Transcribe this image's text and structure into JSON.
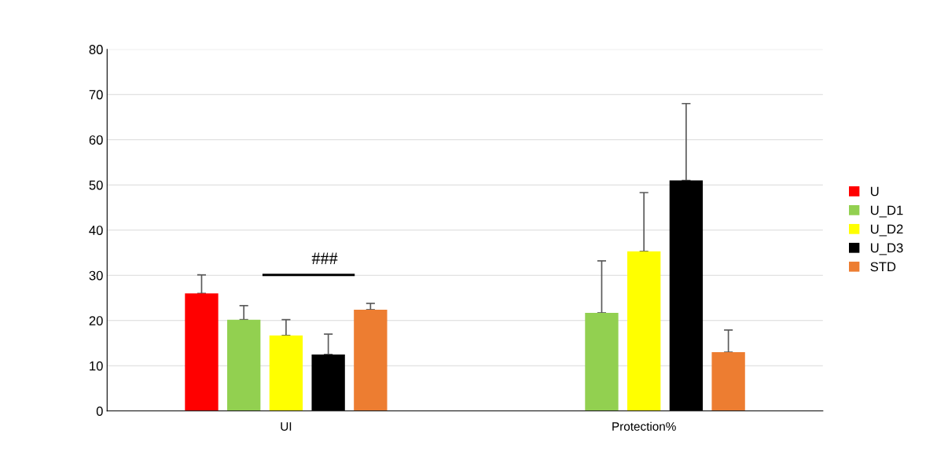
{
  "chart_data": {
    "type": "bar",
    "categories": [
      "UI",
      "Protection%"
    ],
    "series": [
      {
        "name": "U",
        "color": "#ff0000",
        "values": [
          26,
          null
        ],
        "errors": [
          [
            26,
            30.1
          ],
          null
        ]
      },
      {
        "name": "U_D1",
        "color": "#92d050",
        "values": [
          20.2,
          21.7
        ],
        "errors": [
          [
            20.2,
            23.3
          ],
          [
            21.7,
            33.2
          ]
        ]
      },
      {
        "name": "U_D2",
        "color": "#ffff00",
        "values": [
          16.7,
          35.3
        ],
        "errors": [
          [
            16.7,
            20.2
          ],
          [
            35.3,
            48.3
          ]
        ]
      },
      {
        "name": "U_D3",
        "color": "#000000",
        "values": [
          12.5,
          51
        ],
        "errors": [
          [
            12.5,
            17
          ],
          [
            51,
            68
          ]
        ]
      },
      {
        "name": "STD",
        "color": "#ed7d31",
        "values": [
          22.4,
          13
        ],
        "errors": [
          [
            22.4,
            23.8
          ],
          [
            13,
            17.9
          ]
        ]
      }
    ],
    "ylim": [
      0,
      80
    ],
    "yticks": [
      0,
      10,
      20,
      30,
      40,
      50,
      60,
      70,
      80
    ],
    "grid": "y",
    "legend": "right",
    "annotations": [
      "###"
    ]
  }
}
